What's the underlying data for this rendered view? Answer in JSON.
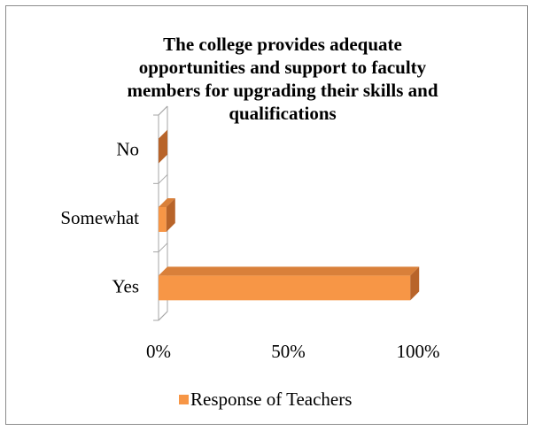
{
  "chart_data": {
    "type": "bar",
    "orientation": "horizontal",
    "style": "3d-clustered-bar",
    "title": "The college provides adequate opportunities and support to faculty members for upgrading their skills and qualifications",
    "title_lines": [
      "The college provides adequate",
      "opportunities and support to faculty",
      "members for upgrading their skills and",
      "qualifications"
    ],
    "categories": [
      "Yes",
      "Somewhat",
      "No"
    ],
    "series": [
      {
        "name": "Response of Teachers",
        "values": [
          0.97,
          0.03,
          0.0
        ]
      }
    ],
    "xlim": [
      0,
      1
    ],
    "x_ticks": [
      0,
      0.5,
      1
    ],
    "x_tick_labels": [
      "0%",
      "50%",
      "100%"
    ],
    "xlabel": "",
    "ylabel": "",
    "grid": false,
    "legend": "bottom",
    "colors": {
      "bar_front": "#f79646",
      "bar_side": "#b8642a",
      "bar_top": "#d9803a",
      "axis": "#a6a6a6"
    }
  }
}
